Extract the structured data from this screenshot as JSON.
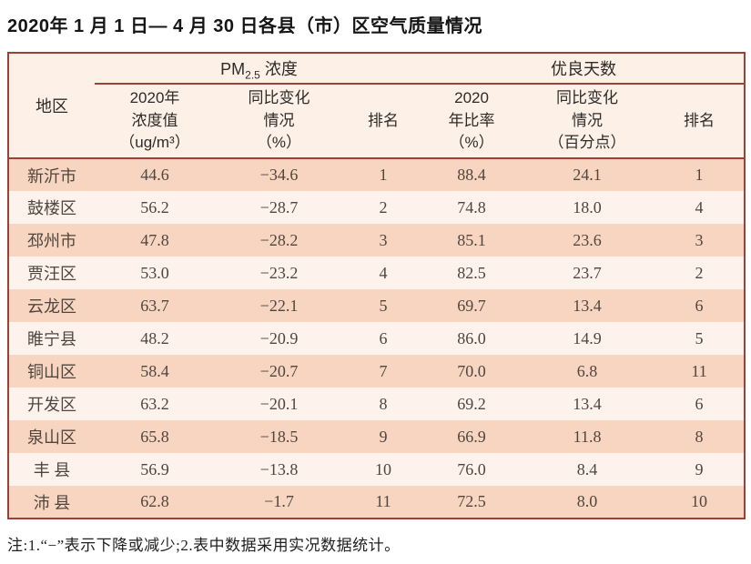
{
  "title": "2020年 1 月 1 日— 4 月 30 日各县（市）区空气质量情况",
  "table": {
    "header": {
      "region": "地区",
      "pm_prefix": "PM",
      "pm_sub": "2.5",
      "pm_suffix": " 浓度",
      "good_days": "优良天数",
      "sub": [
        "2020年\n浓度值\n（ug/m³）",
        "同比变化\n情况\n（%）",
        "排名",
        "2020\n年比率\n（%）",
        "同比变化\n情况\n（百分点）",
        "排名"
      ]
    },
    "rows": [
      {
        "region": "新沂市",
        "pm_value": "44.6",
        "pm_change": "−34.6",
        "pm_rank": "1",
        "good_rate": "88.4",
        "good_change": "24.1",
        "good_rank": "1"
      },
      {
        "region": "鼓楼区",
        "pm_value": "56.2",
        "pm_change": "−28.7",
        "pm_rank": "2",
        "good_rate": "74.8",
        "good_change": "18.0",
        "good_rank": "4"
      },
      {
        "region": "邳州市",
        "pm_value": "47.8",
        "pm_change": "−28.2",
        "pm_rank": "3",
        "good_rate": "85.1",
        "good_change": "23.6",
        "good_rank": "3"
      },
      {
        "region": "贾汪区",
        "pm_value": "53.0",
        "pm_change": "−23.2",
        "pm_rank": "4",
        "good_rate": "82.5",
        "good_change": "23.7",
        "good_rank": "2"
      },
      {
        "region": "云龙区",
        "pm_value": "63.7",
        "pm_change": "−22.1",
        "pm_rank": "5",
        "good_rate": "69.7",
        "good_change": "13.4",
        "good_rank": "6"
      },
      {
        "region": "睢宁县",
        "pm_value": "48.2",
        "pm_change": "−20.9",
        "pm_rank": "6",
        "good_rate": "86.0",
        "good_change": "14.9",
        "good_rank": "5"
      },
      {
        "region": "铜山区",
        "pm_value": "58.4",
        "pm_change": "−20.7",
        "pm_rank": "7",
        "good_rate": "70.0",
        "good_change": "6.8",
        "good_rank": "11"
      },
      {
        "region": "开发区",
        "pm_value": "63.2",
        "pm_change": "−20.1",
        "pm_rank": "8",
        "good_rate": "69.2",
        "good_change": "13.4",
        "good_rank": "6"
      },
      {
        "region": "泉山区",
        "pm_value": "65.8",
        "pm_change": "−18.5",
        "pm_rank": "9",
        "good_rate": "66.9",
        "good_change": "11.8",
        "good_rank": "8"
      },
      {
        "region": "丰 县",
        "pm_value": "56.9",
        "pm_change": "−13.8",
        "pm_rank": "10",
        "good_rate": "76.0",
        "good_change": "8.4",
        "good_rank": "9"
      },
      {
        "region": "沛 县",
        "pm_value": "62.8",
        "pm_change": "−1.7",
        "pm_rank": "11",
        "good_rate": "72.5",
        "good_change": "8.0",
        "good_rank": "10"
      }
    ]
  },
  "note": "注:1.“−”表示下降或减少;2.表中数据采用实况数据统计。"
}
